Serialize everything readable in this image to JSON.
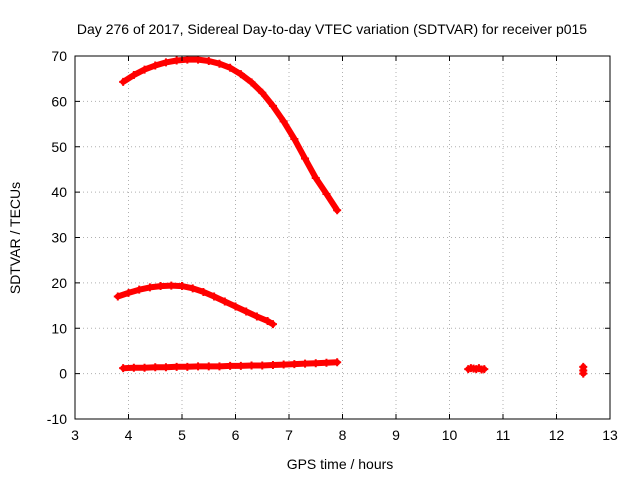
{
  "chart_data": {
    "type": "scatter",
    "title": "Day 276 of 2017, Sidereal Day-to-day VTEC variation (SDTVAR) for receiver p015",
    "xlabel": "GPS time / hours",
    "ylabel": "SDTVAR / TECUs",
    "xlim": [
      3,
      13
    ],
    "ylim": [
      -10,
      70
    ],
    "xticks": [
      3,
      4,
      5,
      6,
      7,
      8,
      9,
      10,
      11,
      12,
      13
    ],
    "yticks": [
      -10,
      0,
      10,
      20,
      30,
      40,
      50,
      60,
      70
    ],
    "grid": true,
    "marker": "plus",
    "color": "#ff0000",
    "series": [
      {
        "x": [
          3.9,
          4.1,
          4.3,
          4.5,
          4.7,
          4.9,
          5.1,
          5.3,
          5.5,
          5.7,
          5.9,
          6.1,
          6.3,
          6.5,
          6.7,
          6.9,
          7.1,
          7.3,
          7.5,
          7.7,
          7.9
        ],
        "y": [
          64.3,
          65.8,
          67.0,
          67.9,
          68.6,
          69.0,
          69.2,
          69.2,
          68.9,
          68.3,
          67.4,
          66.0,
          64.2,
          61.9,
          59.0,
          55.6,
          51.7,
          47.4,
          43.1,
          39.6,
          36.0
        ]
      },
      {
        "x": [
          3.8,
          4.0,
          4.2,
          4.4,
          4.6,
          4.8,
          5.0,
          5.2,
          5.4,
          5.6,
          5.8,
          6.0,
          6.2,
          6.4,
          6.6,
          6.7
        ],
        "y": [
          17.0,
          17.8,
          18.5,
          19.0,
          19.3,
          19.4,
          19.3,
          18.8,
          18.0,
          17.0,
          15.9,
          14.8,
          13.7,
          12.6,
          11.6,
          10.9
        ]
      },
      {
        "x": [
          3.9,
          4.1,
          4.3,
          4.5,
          4.7,
          4.9,
          5.1,
          5.3,
          5.5,
          5.7,
          5.9,
          6.1,
          6.3,
          6.5,
          6.7,
          6.9,
          7.1,
          7.3,
          7.5,
          7.7,
          7.9
        ],
        "y": [
          1.2,
          1.3,
          1.3,
          1.4,
          1.4,
          1.5,
          1.5,
          1.6,
          1.6,
          1.6,
          1.7,
          1.7,
          1.8,
          1.8,
          1.9,
          2.0,
          2.1,
          2.2,
          2.3,
          2.4,
          2.5
        ]
      },
      {
        "x": [
          10.35,
          10.4,
          10.45,
          10.5,
          10.55,
          10.6,
          10.65
        ],
        "y": [
          1.0,
          1.2,
          1.1,
          1.0,
          1.2,
          0.9,
          1.0
        ]
      },
      {
        "x": [
          12.5,
          12.5,
          12.5
        ],
        "y": [
          1.5,
          0.7,
          0.0
        ]
      }
    ]
  }
}
